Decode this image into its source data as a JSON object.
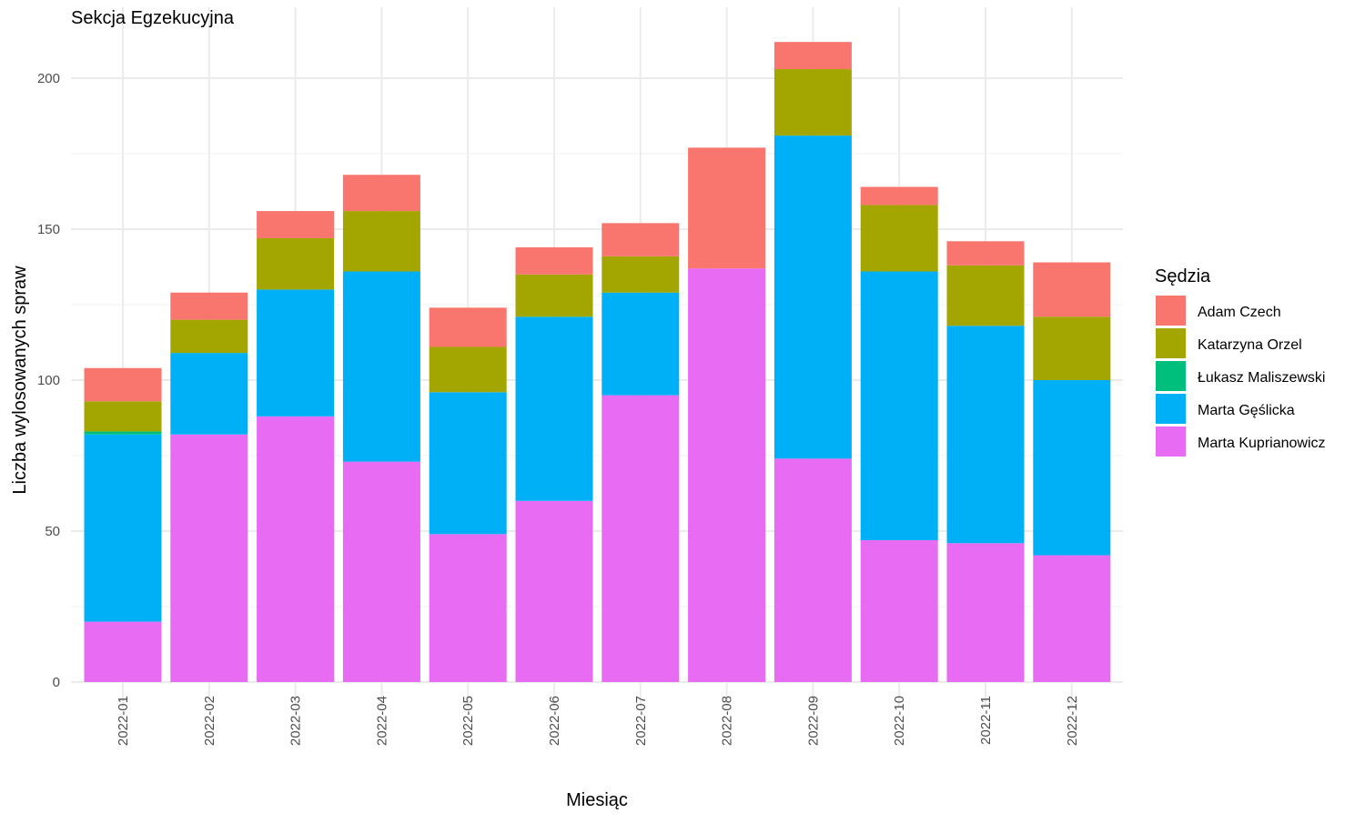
{
  "chart_data": {
    "type": "bar",
    "stacked": true,
    "title": "Sekcja Egzekucyjna",
    "xlabel": "Miesiąc",
    "ylabel": "Liczba wylosowanych spraw",
    "ylim": [
      0,
      215
    ],
    "yticks": [
      0,
      50,
      100,
      150,
      200
    ],
    "grid": true,
    "legend_title": "Sędzia",
    "legend_position": "right",
    "categories": [
      "2022-01",
      "2022-02",
      "2022-03",
      "2022-04",
      "2022-05",
      "2022-06",
      "2022-07",
      "2022-08",
      "2022-09",
      "2022-10",
      "2022-11",
      "2022-12"
    ],
    "series": [
      {
        "name": "Marta Kuprianowicz",
        "color": "#E76BF3",
        "values": [
          20,
          82,
          88,
          73,
          49,
          60,
          95,
          137,
          74,
          47,
          46,
          42
        ]
      },
      {
        "name": "Marta Gęślicka",
        "color": "#00B0F6",
        "values": [
          62,
          27,
          42,
          63,
          47,
          61,
          34,
          0,
          107,
          89,
          72,
          58
        ]
      },
      {
        "name": "Łukasz Maliszewski",
        "color": "#00BF7D",
        "values": [
          1,
          0,
          0,
          0,
          0,
          0,
          0,
          0,
          0,
          0,
          0,
          0
        ]
      },
      {
        "name": "Katarzyna Orzel",
        "color": "#A3A500",
        "values": [
          10,
          11,
          17,
          20,
          15,
          14,
          12,
          0,
          22,
          22,
          20,
          21
        ]
      },
      {
        "name": "Adam Czech",
        "color": "#F8766D",
        "values": [
          11,
          9,
          9,
          12,
          13,
          9,
          11,
          40,
          9,
          6,
          8,
          18
        ]
      }
    ],
    "legend_order": [
      "Adam Czech",
      "Katarzyna Orzel",
      "Łukasz Maliszewski",
      "Marta Gęślicka",
      "Marta Kuprianowicz"
    ]
  }
}
